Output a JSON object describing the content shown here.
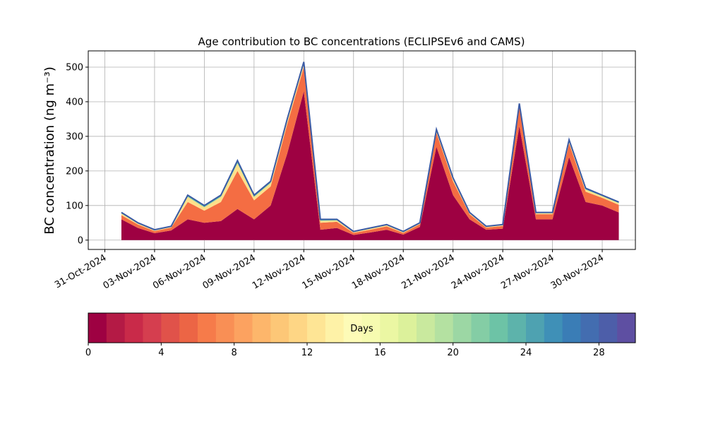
{
  "chart_data": {
    "type": "stacked-area",
    "title": "Age contribution to BC concentrations (ECLIPSEv6 and CAMS)",
    "y_label": "BC concentration (ng m⁻³)",
    "x": [
      "2024-11-01",
      "2024-11-02",
      "2024-11-03",
      "2024-11-04",
      "2024-11-05",
      "2024-11-06",
      "2024-11-07",
      "2024-11-08",
      "2024-11-09",
      "2024-11-10",
      "2024-11-11",
      "2024-11-12",
      "2024-11-13",
      "2024-11-14",
      "2024-11-15",
      "2024-11-16",
      "2024-11-17",
      "2024-11-18",
      "2024-11-19",
      "2024-11-20",
      "2024-11-21",
      "2024-11-22",
      "2024-11-23",
      "2024-11-24",
      "2024-11-25",
      "2024-11-26",
      "2024-11-27",
      "2024-11-28",
      "2024-11-29",
      "2024-11-30",
      "2024-12-01"
    ],
    "series": [
      {
        "color": "#9e0142",
        "values": [
          60,
          35,
          20,
          28,
          60,
          50,
          55,
          90,
          60,
          100,
          250,
          430,
          30,
          35,
          15,
          22,
          30,
          16,
          38,
          270,
          130,
          60,
          30,
          33,
          330,
          60,
          60,
          240,
          110,
          100,
          80
        ]
      },
      {
        "color": "#f46d43",
        "values": [
          12,
          10,
          6,
          8,
          50,
          35,
          55,
          110,
          55,
          55,
          85,
          70,
          20,
          18,
          6,
          8,
          10,
          5,
          8,
          40,
          40,
          15,
          6,
          8,
          55,
          15,
          15,
          40,
          30,
          22,
          22
        ]
      },
      {
        "color": "#fee08b",
        "values": [
          5,
          3,
          2,
          2,
          15,
          10,
          15,
          22,
          10,
          10,
          10,
          10,
          6,
          4,
          2,
          3,
          3,
          2,
          2,
          6,
          6,
          3,
          2,
          2,
          6,
          3,
          3,
          6,
          6,
          5,
          5
        ]
      },
      {
        "color": "#66c2a5",
        "values": [
          3,
          2,
          2,
          2,
          5,
          5,
          5,
          8,
          5,
          5,
          5,
          5,
          4,
          3,
          2,
          2,
          2,
          2,
          2,
          4,
          4,
          2,
          2,
          2,
          4,
          2,
          2,
          4,
          4,
          3,
          3
        ]
      }
    ],
    "outline_color": "#3b5ba5",
    "xlim": [
      "2024-10-30",
      "2024-12-02"
    ],
    "xticks": [
      {
        "value": "2024-10-31",
        "label": "31-Oct-2024"
      },
      {
        "value": "2024-11-03",
        "label": "03-Nov-2024"
      },
      {
        "value": "2024-11-06",
        "label": "06-Nov-2024"
      },
      {
        "value": "2024-11-09",
        "label": "09-Nov-2024"
      },
      {
        "value": "2024-11-12",
        "label": "12-Nov-2024"
      },
      {
        "value": "2024-11-15",
        "label": "15-Nov-2024"
      },
      {
        "value": "2024-11-18",
        "label": "18-Nov-2024"
      },
      {
        "value": "2024-11-21",
        "label": "21-Nov-2024"
      },
      {
        "value": "2024-11-24",
        "label": "24-Nov-2024"
      },
      {
        "value": "2024-11-27",
        "label": "27-Nov-2024"
      },
      {
        "value": "2024-11-30",
        "label": "30-Nov-2024"
      }
    ],
    "ylim": [
      -27,
      547
    ],
    "yticks": [
      0,
      100,
      200,
      300,
      400,
      500
    ],
    "grid": true,
    "colorbar": {
      "label": "Days",
      "lim": [
        0,
        30
      ],
      "ticks": [
        0,
        4,
        8,
        12,
        16,
        20,
        24,
        28
      ],
      "colors": [
        "#9e0142",
        "#b41a45",
        "#c92a49",
        "#d53e4f",
        "#e0524a",
        "#ec6545",
        "#f67b4a",
        "#f98f55",
        "#fca260",
        "#fdb66b",
        "#fdc777",
        "#fed685",
        "#fee595",
        "#fef2a7",
        "#fdfbb7",
        "#f6fbb0",
        "#ebf7a3",
        "#dcf19b",
        "#c9e99e",
        "#b4e1a1",
        "#9cd7a4",
        "#84cda5",
        "#6dc3a6",
        "#5db3ab",
        "#4ea2b1",
        "#3f90b7",
        "#3a7db6",
        "#436db0",
        "#4d5ea9",
        "#5e4fa2"
      ]
    }
  }
}
